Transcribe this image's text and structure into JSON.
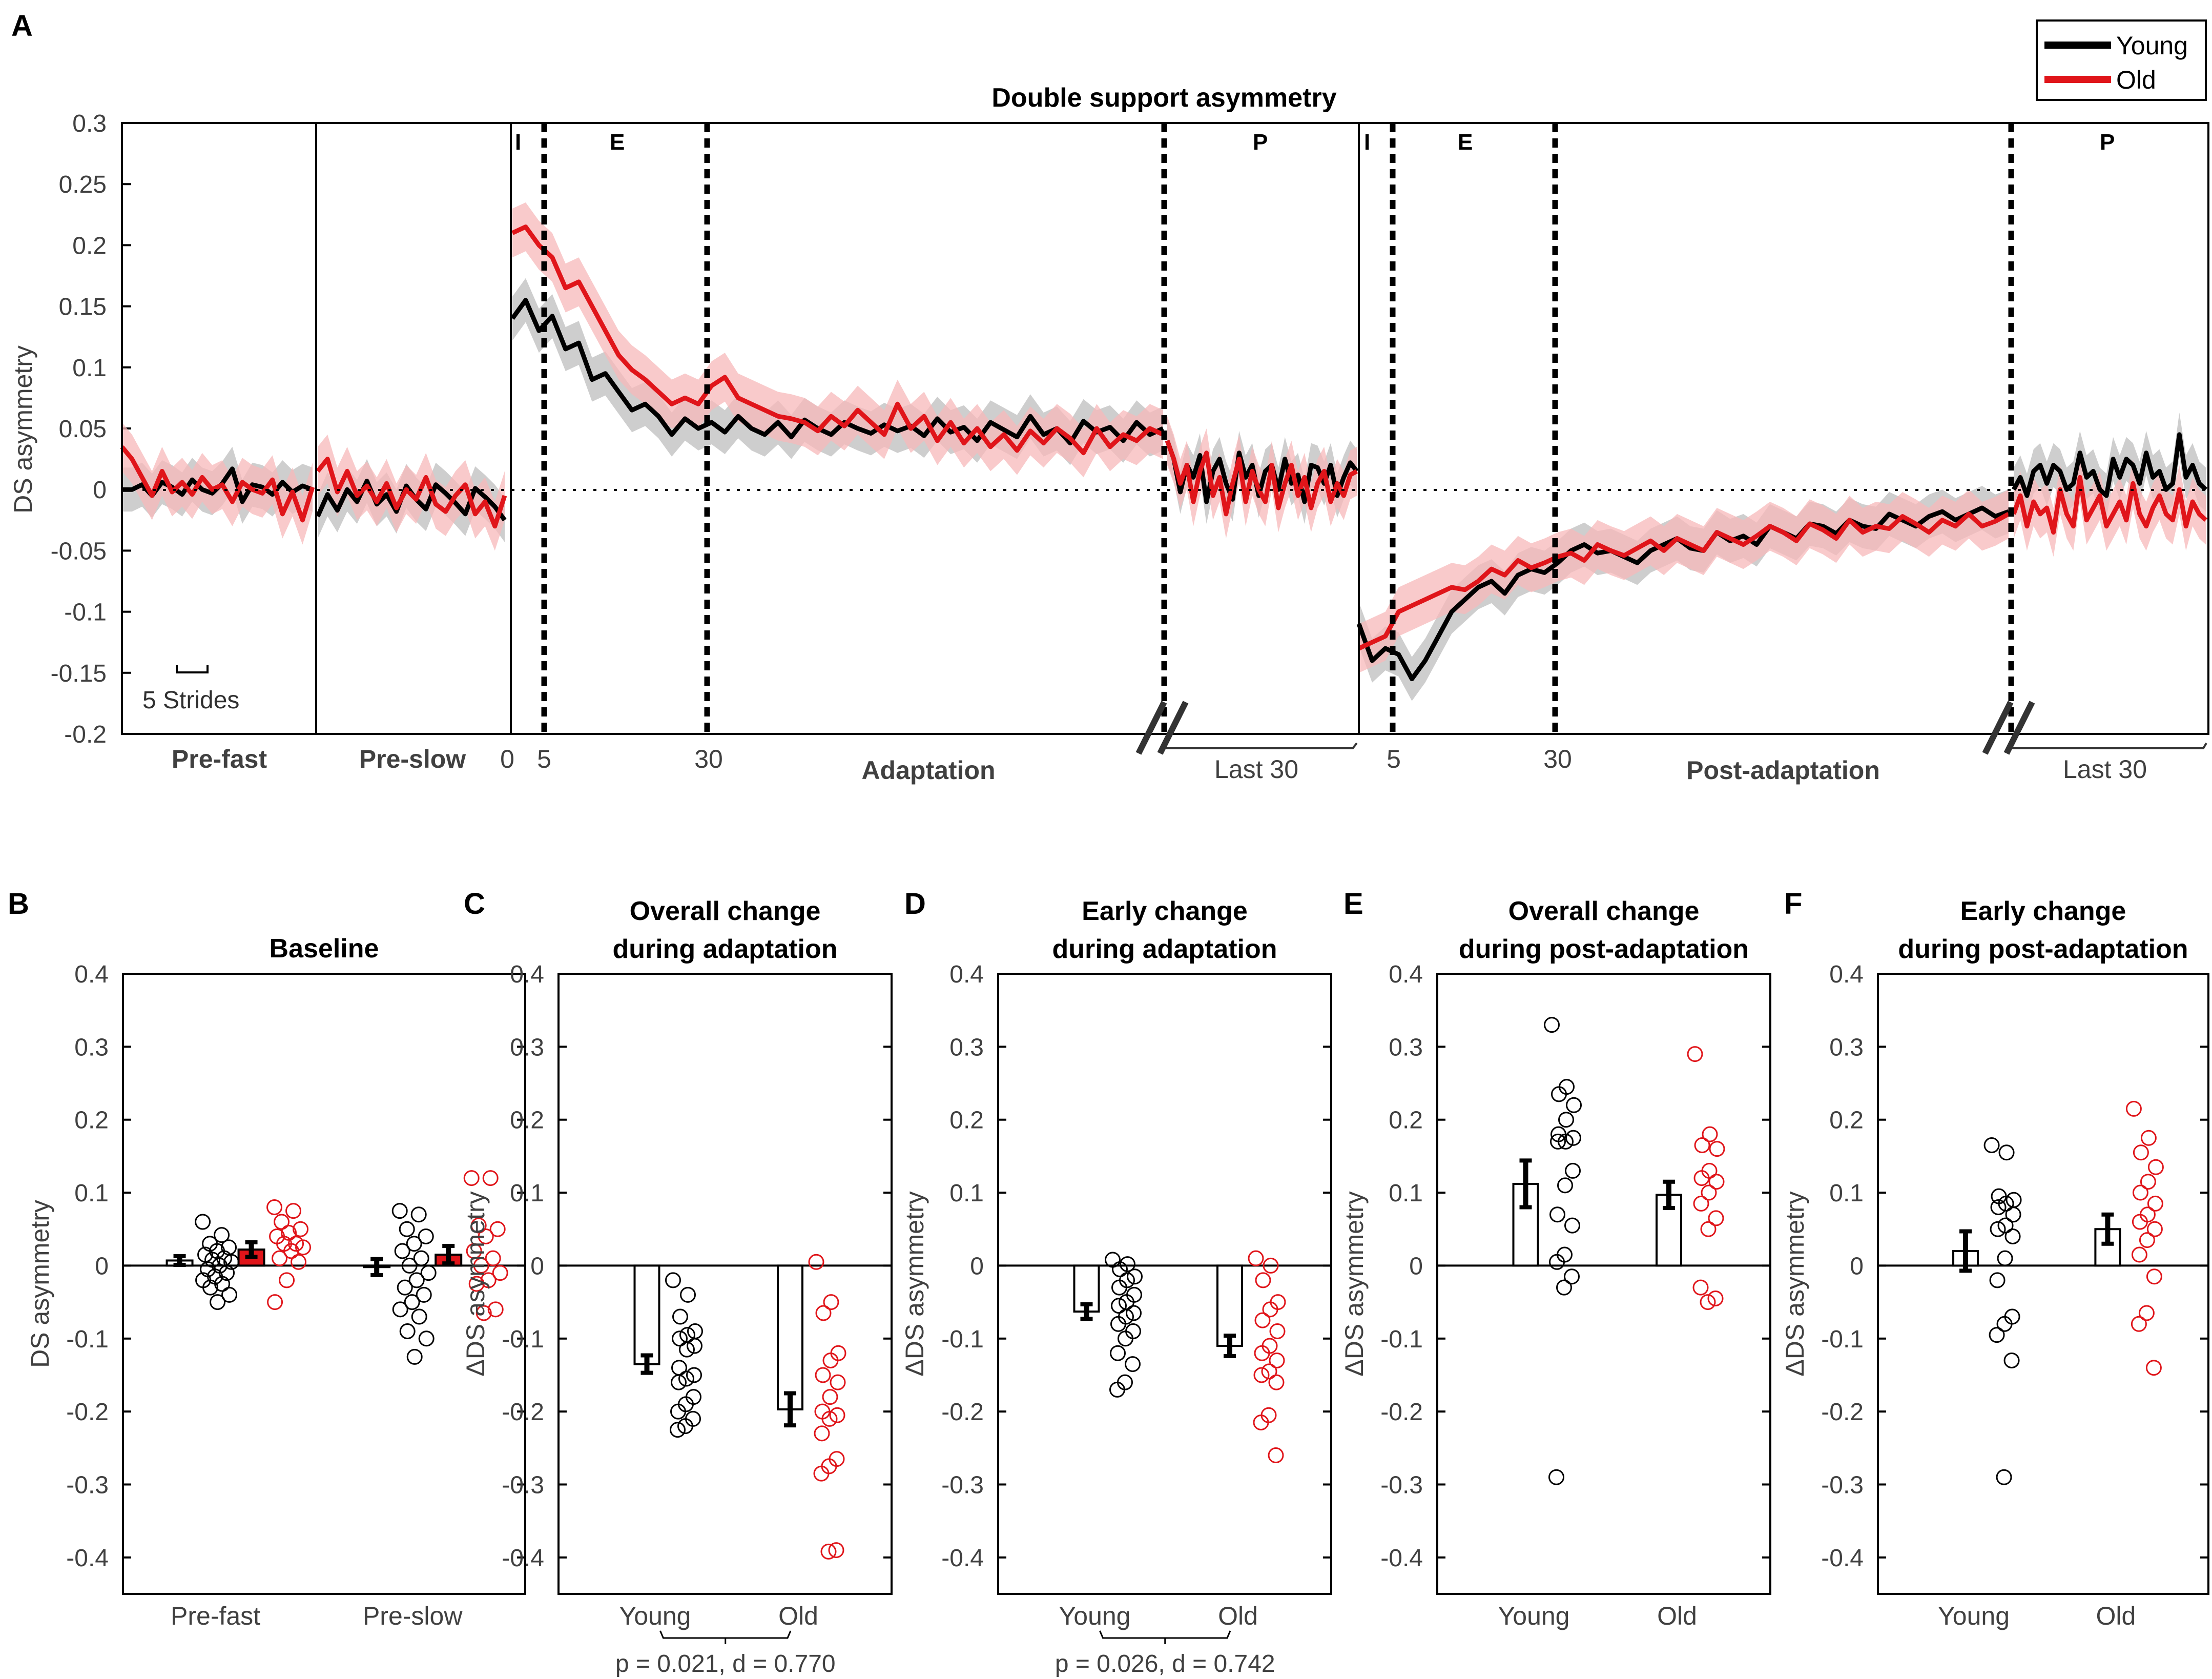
{
  "colors": {
    "young": "#000000",
    "old": "#e0151a",
    "young_band": "#bdbdbd",
    "old_band": "#f7b8ba"
  },
  "legend": {
    "young": "Young",
    "old": "Old"
  },
  "panel_a": {
    "letter": "A",
    "title": "Double support asymmetry",
    "ylabel": "DS asymmetry",
    "yticks": [
      "0.3",
      "0.25",
      "0.2",
      "0.15",
      "0.1",
      "0.05",
      "0",
      "-0.05",
      "-0.1",
      "-0.15",
      "-0.2"
    ],
    "scale_bar": "5 Strides",
    "section_labels": {
      "pre_fast": "Pre-fast",
      "pre_slow": "Pre-slow",
      "adaptation": "Adaptation",
      "post_adaptation": "Post-adaptation"
    },
    "stride_ticks": {
      "zero": "0",
      "adapt_5": "5",
      "adapt_30": "30",
      "adapt_last": "Last 30",
      "post_5": "5",
      "post_30": "30",
      "post_last": "Last 30"
    },
    "epoch_markers": {
      "adapt_initial": "I",
      "adapt_early": "E",
      "adapt_plateau": "P",
      "post_initial": "I",
      "post_early": "E",
      "post_plateau": "P"
    }
  },
  "chart_data": [
    {
      "type": "line",
      "panel": "A",
      "title": "Double support asymmetry",
      "ylabel": "DS asymmetry",
      "ylim": [
        -0.2,
        0.3
      ],
      "x_unit": "strides",
      "epochs": [
        "Pre-fast",
        "Pre-slow",
        "Adaptation",
        "Adaptation Last 30",
        "Post-adaptation",
        "Post-adaptation Last 30"
      ],
      "series": [
        {
          "name": "Young",
          "segments": {
            "pre_fast": [
              0.0,
              0.0,
              0.004,
              -0.005,
              0.006,
              0.002,
              -0.004,
              0.008,
              0.0,
              -0.003,
              0.005,
              0.017,
              -0.01,
              0.004,
              0.002,
              -0.004,
              0.006,
              -0.002,
              0.003,
              0.0
            ],
            "pre_slow": [
              -0.022,
              -0.004,
              -0.017,
              0.0,
              -0.01,
              0.007,
              -0.012,
              -0.004,
              -0.018,
              0.003,
              -0.008,
              -0.016,
              0.004,
              -0.003,
              -0.011,
              -0.02,
              0.001,
              -0.006,
              -0.014,
              -0.025
            ],
            "adaptation": [
              0.14,
              0.155,
              0.13,
              0.142,
              0.115,
              0.12,
              0.09,
              0.095,
              0.08,
              0.065,
              0.07,
              0.06,
              0.045,
              0.058,
              0.05,
              0.055,
              0.047,
              0.06,
              0.05,
              0.045,
              0.055,
              0.043,
              0.057,
              0.05,
              0.045,
              0.055,
              0.05,
              0.046,
              0.053,
              0.048,
              0.052,
              0.044,
              0.058,
              0.047,
              0.051,
              0.04,
              0.055,
              0.049,
              0.043,
              0.06,
              0.045,
              0.05,
              0.038,
              0.056,
              0.047,
              0.051,
              0.04,
              0.055,
              0.045,
              0.05
            ],
            "adaptation_last30": [
              0.04,
              0.025,
              -0.002,
              0.02,
              0.01,
              0.028,
              -0.01,
              0.015,
              0.025,
              0.005,
              -0.008,
              0.03,
              0.01,
              0.02,
              -0.005,
              0.015,
              0.02,
              0.0,
              0.025,
              0.005,
              0.012,
              -0.01,
              0.02,
              0.018,
              0.005,
              0.02,
              -0.005,
              0.01,
              0.022,
              0.015
            ],
            "post_adaptation": [
              -0.11,
              -0.14,
              -0.13,
              -0.135,
              -0.155,
              -0.14,
              -0.12,
              -0.1,
              -0.09,
              -0.08,
              -0.075,
              -0.085,
              -0.07,
              -0.065,
              -0.068,
              -0.06,
              -0.05,
              -0.045,
              -0.052,
              -0.05,
              -0.055,
              -0.06,
              -0.05,
              -0.045,
              -0.04,
              -0.048,
              -0.05,
              -0.035,
              -0.042,
              -0.038,
              -0.045,
              -0.03,
              -0.035,
              -0.04,
              -0.028,
              -0.03,
              -0.036,
              -0.025,
              -0.03,
              -0.032,
              -0.02,
              -0.025,
              -0.03,
              -0.022,
              -0.018,
              -0.025,
              -0.02,
              -0.015,
              -0.022,
              -0.018
            ],
            "post_last30": [
              0.0,
              0.01,
              -0.005,
              0.015,
              0.02,
              0.005,
              0.02,
              0.015,
              0.0,
              0.005,
              0.03,
              0.01,
              0.015,
              0.0,
              -0.005,
              0.025,
              0.01,
              0.025,
              0.02,
              0.005,
              0.03,
              0.01,
              0.015,
              0.0,
              0.005,
              0.045,
              0.01,
              0.02,
              0.005,
              0.0
            ]
          }
        },
        {
          "name": "Old",
          "segments": {
            "pre_fast": [
              0.035,
              0.025,
              0.01,
              -0.005,
              0.015,
              -0.002,
              0.006,
              -0.004,
              0.01,
              0.0,
              0.004,
              -0.01,
              0.006,
              0.0,
              -0.003,
              0.008,
              -0.02,
              -0.002,
              -0.025,
              0.002
            ],
            "pre_slow": [
              0.015,
              0.025,
              -0.002,
              0.015,
              -0.005,
              0.003,
              -0.01,
              0.005,
              -0.015,
              0.0,
              -0.008,
              0.01,
              -0.012,
              -0.018,
              -0.005,
              0.004,
              -0.02,
              -0.01,
              -0.03,
              -0.005
            ],
            "adaptation": [
              0.21,
              0.215,
              0.2,
              0.19,
              0.165,
              0.17,
              0.15,
              0.13,
              0.11,
              0.098,
              0.09,
              0.08,
              0.07,
              0.075,
              0.07,
              0.085,
              0.092,
              0.075,
              0.07,
              0.065,
              0.06,
              0.058,
              0.055,
              0.048,
              0.06,
              0.052,
              0.065,
              0.055,
              0.045,
              0.07,
              0.05,
              0.06,
              0.04,
              0.055,
              0.038,
              0.05,
              0.035,
              0.045,
              0.032,
              0.048,
              0.038,
              0.05,
              0.042,
              0.03,
              0.05,
              0.035,
              0.045,
              0.04,
              0.05,
              0.045
            ],
            "adaptation_last30": [
              0.04,
              0.025,
              0.005,
              0.02,
              -0.01,
              0.015,
              0.03,
              -0.005,
              0.01,
              -0.02,
              0.005,
              0.025,
              -0.01,
              0.015,
              0.0,
              -0.01,
              0.02,
              -0.015,
              0.005,
              0.02,
              -0.005,
              0.01,
              -0.015,
              0.005,
              0.015,
              -0.01,
              0.005,
              -0.005,
              0.012,
              0.015
            ],
            "post_adaptation": [
              -0.13,
              -0.125,
              -0.12,
              -0.1,
              -0.095,
              -0.09,
              -0.085,
              -0.08,
              -0.082,
              -0.075,
              -0.065,
              -0.07,
              -0.058,
              -0.064,
              -0.06,
              -0.055,
              -0.052,
              -0.058,
              -0.045,
              -0.05,
              -0.054,
              -0.048,
              -0.042,
              -0.05,
              -0.04,
              -0.045,
              -0.05,
              -0.035,
              -0.04,
              -0.045,
              -0.038,
              -0.03,
              -0.035,
              -0.042,
              -0.028,
              -0.033,
              -0.04,
              -0.025,
              -0.035,
              -0.03,
              -0.032,
              -0.022,
              -0.028,
              -0.035,
              -0.025,
              -0.03,
              -0.02,
              -0.03,
              -0.026,
              -0.02
            ],
            "post_last30": [
              -0.02,
              -0.005,
              -0.03,
              -0.01,
              -0.02,
              -0.015,
              -0.035,
              0.0,
              -0.02,
              -0.03,
              0.01,
              -0.025,
              -0.015,
              -0.005,
              -0.03,
              -0.02,
              -0.01,
              -0.025,
              0.005,
              -0.02,
              -0.03,
              -0.015,
              -0.005,
              -0.02,
              -0.025,
              0.0,
              -0.03,
              -0.01,
              -0.02,
              -0.025
            ]
          }
        }
      ]
    },
    {
      "type": "bar",
      "panel": "B",
      "letter": "B",
      "title_lines": [
        "Baseline"
      ],
      "ylabel": "DS asymmetry",
      "ylim": [
        -0.45,
        0.4
      ],
      "yticks": [
        "0.4",
        "0.3",
        "0.2",
        "0.1",
        "0",
        "-0.1",
        "-0.2",
        "-0.3",
        "-0.4"
      ],
      "categories": [
        "Pre-fast",
        "Pre-slow"
      ],
      "series": [
        {
          "name": "Young",
          "values": [
            0.007,
            -0.002
          ],
          "errors": [
            0.006,
            0.011
          ],
          "points": [
            [
              0.06,
              0.042,
              0.03,
              0.025,
              0.02,
              0.015,
              0.01,
              0.008,
              0.005,
              0.0,
              -0.005,
              -0.01,
              -0.015,
              -0.02,
              -0.025,
              -0.03,
              -0.04,
              -0.05
            ],
            [
              0.075,
              0.07,
              0.05,
              0.04,
              0.03,
              0.02,
              0.01,
              0.0,
              -0.01,
              -0.02,
              -0.03,
              -0.04,
              -0.05,
              -0.06,
              -0.07,
              -0.09,
              -0.1,
              -0.125
            ]
          ]
        },
        {
          "name": "Old",
          "values": [
            0.022,
            0.015
          ],
          "errors": [
            0.01,
            0.012
          ],
          "points": [
            [
              0.08,
              0.075,
              0.06,
              0.05,
              0.045,
              0.04,
              0.03,
              0.03,
              0.025,
              0.02,
              0.01,
              0.005,
              -0.02,
              -0.05
            ],
            [
              0.12,
              0.12,
              0.055,
              0.05,
              0.04,
              0.02,
              0.01,
              0.0,
              -0.01,
              -0.02,
              -0.025,
              -0.06,
              -0.065
            ]
          ]
        }
      ]
    },
    {
      "type": "bar",
      "panel": "C",
      "letter": "C",
      "title_lines": [
        "Overall change",
        "during adaptation"
      ],
      "ylabel": "ΔDS asymmetry",
      "ylim": [
        -0.45,
        0.4
      ],
      "yticks": [
        "0.4",
        "0.3",
        "0.2",
        "0.1",
        "0",
        "-0.1",
        "-0.2",
        "-0.3",
        "-0.4"
      ],
      "categories": [
        "Young",
        "Old"
      ],
      "values": [
        -0.135,
        -0.197
      ],
      "errors": [
        0.012,
        0.022
      ],
      "points": [
        [
          -0.02,
          -0.04,
          -0.07,
          -0.09,
          -0.095,
          -0.1,
          -0.11,
          -0.115,
          -0.14,
          -0.15,
          -0.155,
          -0.16,
          -0.18,
          -0.19,
          -0.2,
          -0.21,
          -0.22,
          -0.225
        ],
        [
          0.005,
          -0.05,
          -0.065,
          -0.12,
          -0.13,
          -0.15,
          -0.16,
          -0.18,
          -0.2,
          -0.205,
          -0.21,
          -0.23,
          -0.265,
          -0.275,
          -0.285,
          -0.39,
          -0.392
        ]
      ],
      "stat": "p = 0.021, d = 0.770"
    },
    {
      "type": "bar",
      "panel": "D",
      "letter": "D",
      "title_lines": [
        "Early change",
        "during adaptation"
      ],
      "ylabel": "ΔDS asymmetry",
      "ylim": [
        -0.45,
        0.4
      ],
      "yticks": [
        "0.4",
        "0.3",
        "0.2",
        "0.1",
        "0",
        "-0.1",
        "-0.2",
        "-0.3",
        "-0.4"
      ],
      "categories": [
        "Young",
        "Old"
      ],
      "values": [
        -0.063,
        -0.11
      ],
      "errors": [
        0.01,
        0.014
      ],
      "points": [
        [
          0.008,
          0.002,
          -0.005,
          -0.015,
          -0.02,
          -0.03,
          -0.04,
          -0.05,
          -0.055,
          -0.065,
          -0.07,
          -0.08,
          -0.09,
          -0.1,
          -0.12,
          -0.135,
          -0.16,
          -0.17
        ],
        [
          0.01,
          0.0,
          -0.02,
          -0.05,
          -0.06,
          -0.075,
          -0.09,
          -0.11,
          -0.12,
          -0.13,
          -0.145,
          -0.15,
          -0.16,
          -0.205,
          -0.215,
          -0.26
        ]
      ],
      "stat": "p = 0.026, d = 0.742"
    },
    {
      "type": "bar",
      "panel": "E",
      "letter": "E",
      "title_lines": [
        "Overall change",
        "during post-adaptation"
      ],
      "ylabel": "ΔDS asymmetry",
      "ylim": [
        -0.45,
        0.4
      ],
      "yticks": [
        "0.4",
        "0.3",
        "0.2",
        "0.1",
        "0",
        "-0.1",
        "-0.2",
        "-0.3",
        "-0.4"
      ],
      "categories": [
        "Young",
        "Old"
      ],
      "values": [
        0.112,
        0.097
      ],
      "errors": [
        0.032,
        0.018
      ],
      "points": [
        [
          0.33,
          0.245,
          0.235,
          0.22,
          0.2,
          0.18,
          0.175,
          0.17,
          0.17,
          0.13,
          0.11,
          0.07,
          0.055,
          0.015,
          0.005,
          -0.015,
          -0.03,
          -0.29
        ],
        [
          0.29,
          0.18,
          0.165,
          0.16,
          0.13,
          0.12,
          0.115,
          0.1,
          0.085,
          0.065,
          0.05,
          -0.03,
          -0.045,
          -0.05
        ]
      ]
    },
    {
      "type": "bar",
      "panel": "F",
      "letter": "F",
      "title_lines": [
        "Early change",
        "during post-adaptation"
      ],
      "ylabel": "ΔDS asymmetry",
      "ylim": [
        -0.45,
        0.4
      ],
      "yticks": [
        "0.4",
        "0.3",
        "0.2",
        "0.1",
        "0",
        "-0.1",
        "-0.2",
        "-0.3",
        "-0.4"
      ],
      "categories": [
        "Young",
        "Old"
      ],
      "values": [
        0.02,
        0.05
      ],
      "errors": [
        0.027,
        0.02
      ],
      "points": [
        [
          0.165,
          0.155,
          0.095,
          0.09,
          0.085,
          0.08,
          0.07,
          0.055,
          0.05,
          0.04,
          0.01,
          -0.02,
          -0.07,
          -0.08,
          -0.095,
          -0.13,
          -0.29
        ],
        [
          0.215,
          0.175,
          0.155,
          0.135,
          0.115,
          0.1,
          0.085,
          0.07,
          0.06,
          0.05,
          0.035,
          0.015,
          -0.015,
          -0.065,
          -0.08,
          -0.14
        ]
      ]
    }
  ]
}
